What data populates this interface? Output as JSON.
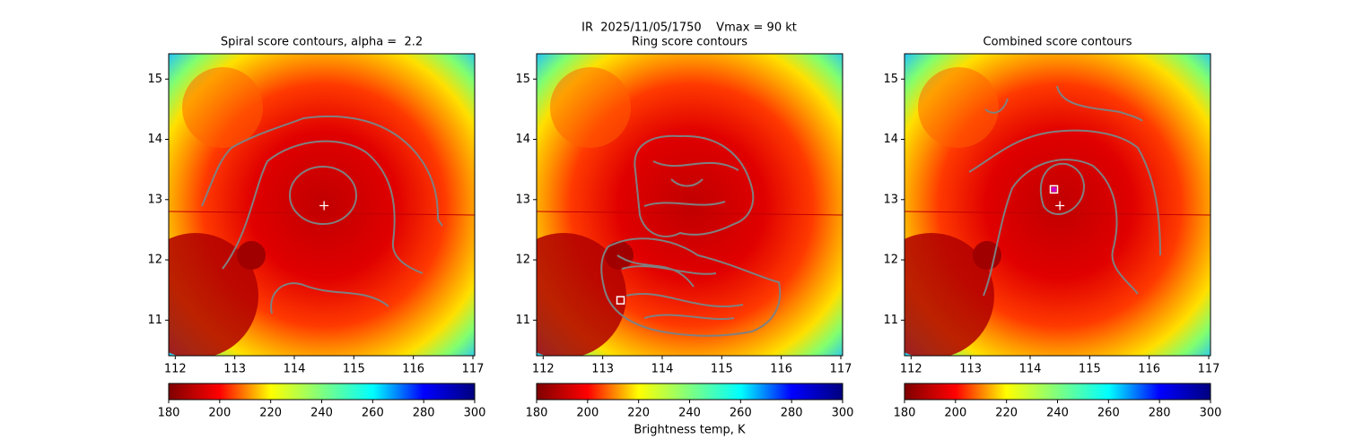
{
  "title": "IR  2025/11/05/1750    Vmax = 90 kt",
  "chart_data": [
    {
      "type": "image",
      "title": "Spiral score contours, alpha =  2.2",
      "xlim": [
        111.89,
        117.03
      ],
      "ylim": [
        10.41,
        15.42
      ],
      "xticks": [
        112,
        113,
        114,
        115,
        116,
        117
      ],
      "yticks": [
        11,
        12,
        13,
        14,
        15
      ],
      "markers": [
        {
          "shape": "plus",
          "color": "#ffffff",
          "x": 114.5,
          "y": 12.9
        }
      ],
      "colorbar": {
        "lim": [
          180,
          300
        ],
        "ticks": [
          180,
          200,
          220,
          240,
          260,
          280,
          300
        ],
        "colormap": [
          "#7f0000",
          "#ff0000",
          "#ffff00",
          "#7fff7f",
          "#00ffff",
          "#0000ff",
          "#00007f"
        ]
      }
    },
    {
      "type": "image",
      "title": "Ring score contours",
      "xlim": [
        111.89,
        117.03
      ],
      "ylim": [
        10.41,
        15.42
      ],
      "xticks": [
        112,
        113,
        114,
        115,
        116,
        117
      ],
      "yticks": [
        11,
        12,
        13,
        14,
        15
      ],
      "markers": [
        {
          "shape": "square",
          "color": "#ffffff",
          "x": 113.3,
          "y": 11.33
        }
      ],
      "colorbar": {
        "lim": [
          180,
          300
        ],
        "ticks": [
          180,
          200,
          220,
          240,
          260,
          280,
          300
        ],
        "label": "Brightness temp, K",
        "colormap": [
          "#7f0000",
          "#ff0000",
          "#ffff00",
          "#7fff7f",
          "#00ffff",
          "#0000ff",
          "#00007f"
        ]
      }
    },
    {
      "type": "image",
      "title": "Combined score contours",
      "xlim": [
        111.89,
        117.03
      ],
      "ylim": [
        10.41,
        15.42
      ],
      "xticks": [
        112,
        113,
        114,
        115,
        116,
        117
      ],
      "yticks": [
        11,
        12,
        13,
        14,
        15
      ],
      "markers": [
        {
          "shape": "plus",
          "color": "#ffffff",
          "x": 114.5,
          "y": 12.9
        },
        {
          "shape": "square",
          "color": "#ffffff",
          "x": 114.4,
          "y": 13.17
        },
        {
          "shape": "circle",
          "color": "#cc00cc",
          "x": 114.4,
          "y": 13.17
        }
      ],
      "colorbar": {
        "lim": [
          180,
          300
        ],
        "ticks": [
          180,
          200,
          220,
          240,
          260,
          280,
          300
        ],
        "colormap": [
          "#7f0000",
          "#ff0000",
          "#ffff00",
          "#7fff7f",
          "#00ffff",
          "#0000ff",
          "#00007f"
        ]
      }
    }
  ]
}
